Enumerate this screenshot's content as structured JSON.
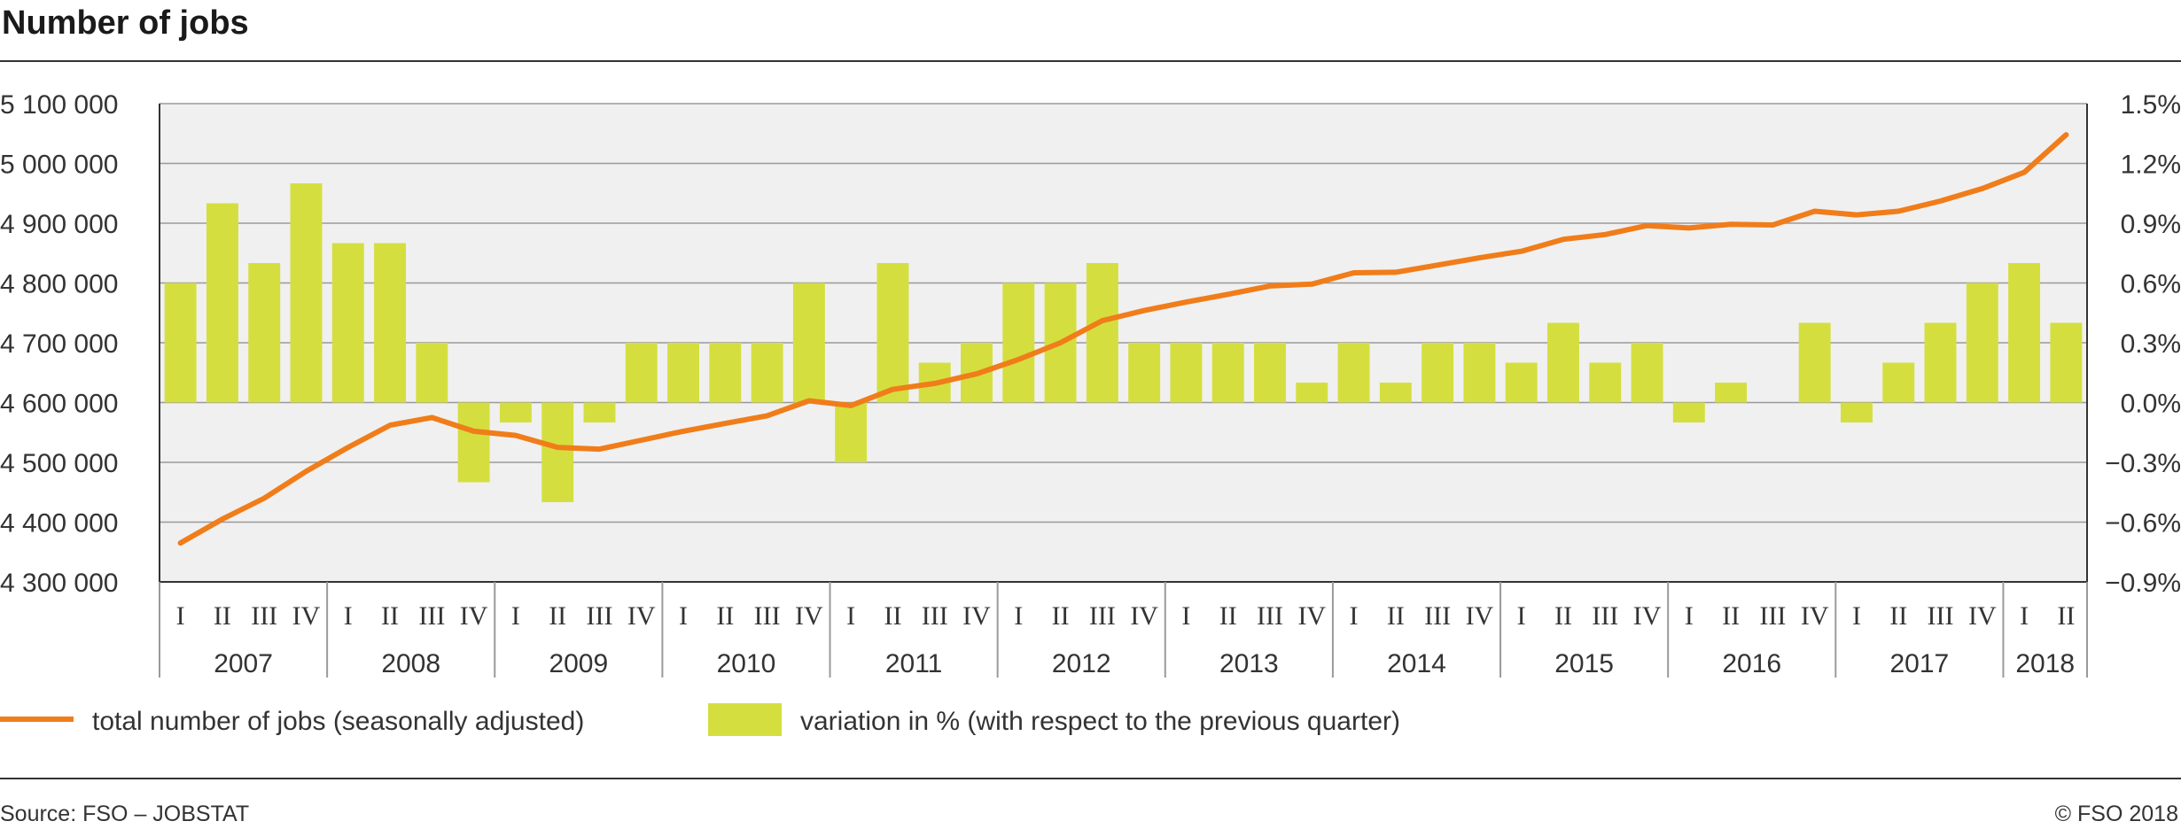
{
  "title": "Number of jobs",
  "source": "Source: FSO – JOBSTAT",
  "copyright": "© FSO 2018",
  "legend": {
    "line_label": "total number of jobs (seasonally adjusted)",
    "bar_label": "variation in % (with respect to the previous quarter)"
  },
  "colors": {
    "line": "#f07d1a",
    "bar": "#d4df3f",
    "plot_bg": "#f0f0f0",
    "grid": "#9a9a9a",
    "frame": "#333333"
  },
  "chart_data": {
    "type": "bar+line",
    "title": "Number of jobs",
    "years": [
      "2007",
      "2008",
      "2009",
      "2010",
      "2011",
      "2012",
      "2013",
      "2014",
      "2015",
      "2016",
      "2017",
      "2018"
    ],
    "quarter_labels": [
      "I",
      "II",
      "III",
      "IV"
    ],
    "categories": [
      "2007 I",
      "2007 II",
      "2007 III",
      "2007 IV",
      "2008 I",
      "2008 II",
      "2008 III",
      "2008 IV",
      "2009 I",
      "2009 II",
      "2009 III",
      "2009 IV",
      "2010 I",
      "2010 II",
      "2010 III",
      "2010 IV",
      "2011 I",
      "2011 II",
      "2011 III",
      "2011 IV",
      "2012 I",
      "2012 II",
      "2012 III",
      "2012 IV",
      "2013 I",
      "2013 II",
      "2013 III",
      "2013 IV",
      "2014 I",
      "2014 II",
      "2014 III",
      "2014 IV",
      "2015 I",
      "2015 II",
      "2015 III",
      "2015 IV",
      "2016 I",
      "2016 II",
      "2016 III",
      "2016 IV",
      "2017 I",
      "2017 II",
      "2017 III",
      "2017 IV",
      "2018 I",
      "2018 II"
    ],
    "left_axis": {
      "ylim": [
        4300000,
        5100000
      ],
      "ticks": [
        4300000,
        4400000,
        4500000,
        4600000,
        4700000,
        4800000,
        4900000,
        5000000,
        5100000
      ],
      "tick_labels": [
        "4 300 000",
        "4 400 000",
        "4 500 000",
        "4 600 000",
        "4 700 000",
        "4 800 000",
        "4 900 000",
        "5 000 000",
        "5 100 000"
      ]
    },
    "right_axis": {
      "ylim": [
        -0.9,
        1.5
      ],
      "ticks": [
        -0.9,
        -0.6,
        -0.3,
        0.0,
        0.3,
        0.6,
        0.9,
        1.2,
        1.5
      ],
      "tick_labels": [
        "−0.9%",
        "−0.6%",
        "−0.3%",
        "0.0%",
        "0.3%",
        "0.6%",
        "0.9%",
        "1.2%",
        "1.5%"
      ]
    },
    "series": [
      {
        "name": "total number of jobs (seasonally adjusted)",
        "type": "line",
        "axis": "left",
        "values": [
          4365000,
          4405000,
          4440000,
          4485000,
          4525000,
          4562000,
          4575000,
          4552000,
          4545000,
          4525000,
          4522000,
          4537000,
          4552000,
          4565000,
          4578000,
          4603000,
          4595000,
          4622000,
          4632000,
          4648000,
          4672000,
          4700000,
          4737000,
          4754000,
          4768000,
          4781000,
          4795000,
          4798000,
          4817000,
          4818000,
          4830000,
          4842000,
          4853000,
          4873000,
          4881000,
          4896000,
          4892000,
          4898000,
          4897000,
          4920000,
          4914000,
          4920000,
          4937000,
          4958000,
          4985000,
          5048000
        ]
      },
      {
        "name": "variation in % (with respect to the previous quarter)",
        "type": "bar",
        "axis": "right",
        "values": [
          0.6,
          1.0,
          0.7,
          1.1,
          0.8,
          0.8,
          0.3,
          -0.4,
          -0.1,
          -0.5,
          -0.1,
          0.3,
          0.3,
          0.3,
          0.3,
          0.6,
          -0.3,
          0.7,
          0.2,
          0.3,
          0.6,
          0.6,
          0.7,
          0.3,
          0.3,
          0.3,
          0.3,
          0.1,
          0.3,
          0.1,
          0.3,
          0.3,
          0.2,
          0.4,
          0.2,
          0.3,
          -0.1,
          0.1,
          0.0,
          0.4,
          -0.1,
          0.2,
          0.4,
          0.6,
          0.7,
          0.4
        ]
      }
    ],
    "grid": true,
    "legend_position": "bottom"
  }
}
